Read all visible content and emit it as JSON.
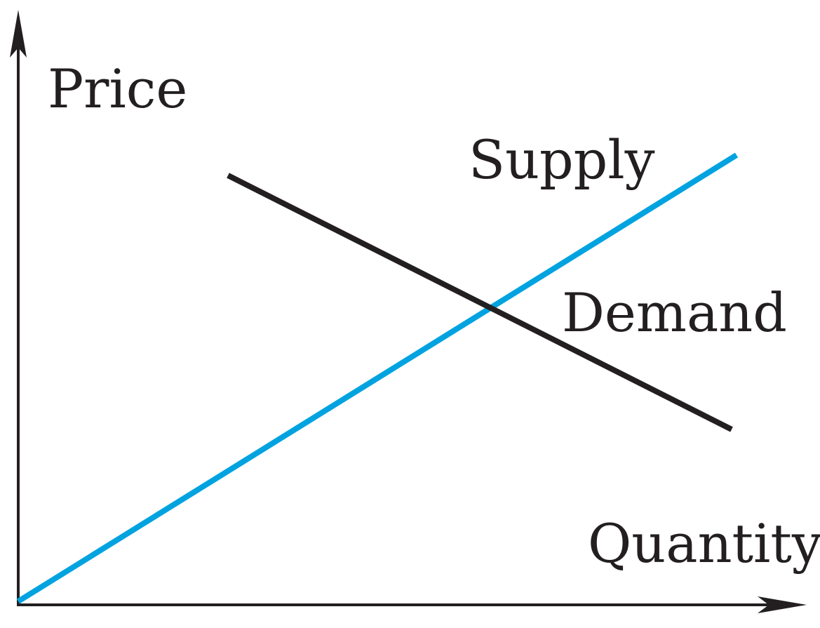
{
  "axes": {
    "y_label": "Price",
    "x_label": "Quantity"
  },
  "curves": [
    {
      "id": "supply",
      "label": "Supply",
      "color": "#00a3e0",
      "direction": "upward-sloping"
    },
    {
      "id": "demand",
      "label": "Demand",
      "color": "#231f20",
      "direction": "downward-sloping"
    }
  ],
  "colors": {
    "axis": "#231f20",
    "background": "#ffffff"
  }
}
